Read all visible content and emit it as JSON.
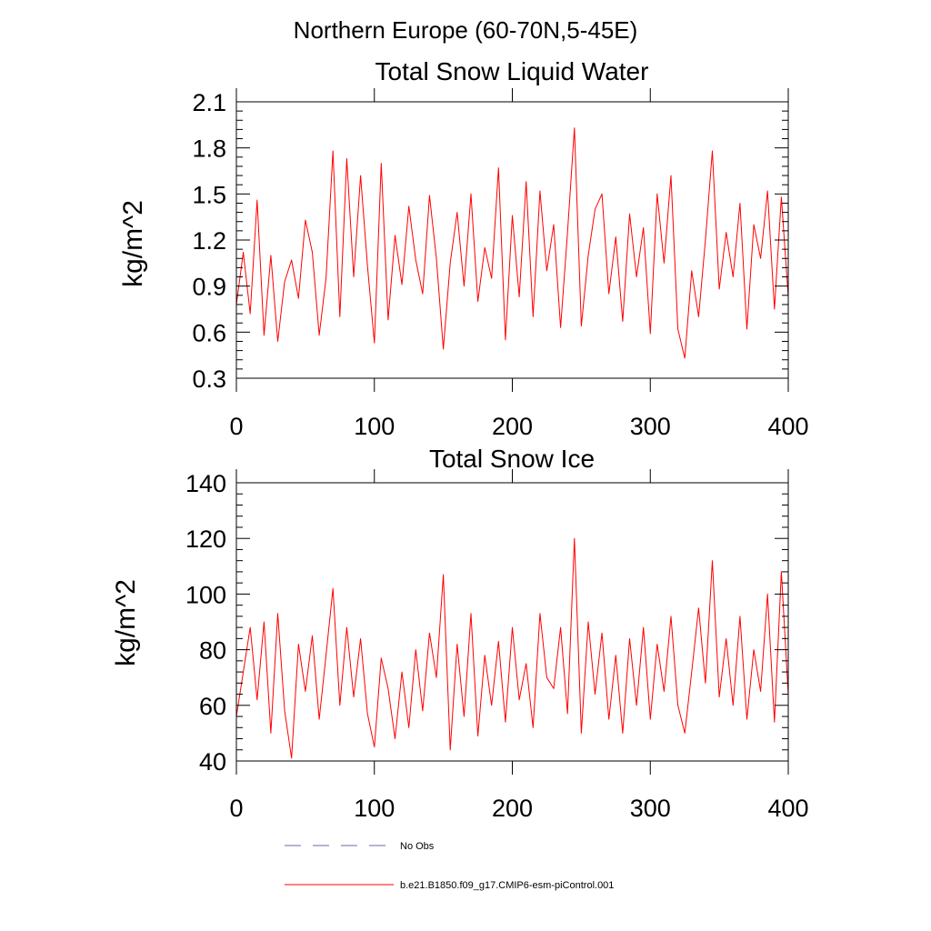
{
  "figure": {
    "suptitle": "Northern Europe (60-70N,5-45E)"
  },
  "chart_data": [
    {
      "type": "line",
      "title": "Total Snow Liquid Water",
      "xlabel": "",
      "ylabel": "kg/m^2",
      "xlim": [
        0,
        400
      ],
      "ylim": [
        0.3,
        2.1
      ],
      "xticks": [
        0,
        100,
        200,
        300,
        400
      ],
      "xtick_labels": [
        "0",
        "100",
        "200",
        "300",
        "400"
      ],
      "yticks": [
        0.3,
        0.6,
        0.9,
        1.2,
        1.5,
        1.8,
        2.1
      ],
      "ytick_labels": [
        "0.3",
        "0.6",
        "0.9",
        "1.2",
        "1.5",
        "1.8",
        "2.1"
      ],
      "grid": false,
      "series": [
        {
          "name": "b.e21.B1850.f09_g17.CMIP6-esm-piControl.001",
          "color": "#ff0000",
          "x": [
            0,
            5,
            10,
            15,
            20,
            25,
            30,
            35,
            40,
            45,
            50,
            55,
            60,
            65,
            70,
            75,
            80,
            85,
            90,
            95,
            100,
            105,
            110,
            115,
            120,
            125,
            130,
            135,
            140,
            145,
            150,
            155,
            160,
            165,
            170,
            175,
            180,
            185,
            190,
            195,
            200,
            205,
            210,
            215,
            220,
            225,
            230,
            235,
            240,
            245,
            250,
            255,
            260,
            265,
            270,
            275,
            280,
            285,
            290,
            295,
            300,
            305,
            310,
            315,
            320,
            325,
            330,
            335,
            340,
            345,
            350,
            355,
            360,
            365,
            370,
            375,
            380,
            385,
            390,
            395,
            400
          ],
          "values": [
            0.78,
            1.12,
            0.72,
            1.46,
            0.58,
            1.1,
            0.54,
            0.93,
            1.07,
            0.82,
            1.33,
            1.12,
            0.58,
            0.95,
            1.78,
            0.7,
            1.73,
            0.96,
            1.62,
            1.03,
            0.53,
            1.7,
            0.68,
            1.23,
            0.91,
            1.42,
            1.07,
            0.85,
            1.49,
            1.08,
            0.49,
            1.05,
            1.38,
            0.9,
            1.5,
            0.8,
            1.15,
            0.95,
            1.67,
            0.55,
            1.36,
            0.83,
            1.58,
            0.7,
            1.52,
            1.0,
            1.3,
            0.63,
            1.25,
            1.93,
            0.64,
            1.1,
            1.4,
            1.5,
            0.85,
            1.22,
            0.67,
            1.37,
            0.96,
            1.28,
            0.59,
            1.5,
            1.05,
            1.62,
            0.62,
            0.43,
            1.0,
            0.7,
            1.2,
            1.78,
            0.88,
            1.25,
            0.96,
            1.44,
            0.62,
            1.3,
            1.08,
            1.52,
            0.75,
            1.48,
            0.83
          ]
        }
      ]
    },
    {
      "type": "line",
      "title": "Total Snow Ice",
      "xlabel": "",
      "ylabel": "kg/m^2",
      "xlim": [
        0,
        400
      ],
      "ylim": [
        40,
        140
      ],
      "xticks": [
        0,
        100,
        200,
        300,
        400
      ],
      "xtick_labels": [
        "0",
        "100",
        "200",
        "300",
        "400"
      ],
      "yticks": [
        40,
        60,
        80,
        100,
        120,
        140
      ],
      "ytick_labels": [
        "40",
        "60",
        "80",
        "100",
        "120",
        "140"
      ],
      "grid": false,
      "series": [
        {
          "name": "b.e21.B1850.f09_g17.CMIP6-esm-piControl.001",
          "color": "#ff0000",
          "x": [
            0,
            5,
            10,
            15,
            20,
            25,
            30,
            35,
            40,
            45,
            50,
            55,
            60,
            65,
            70,
            75,
            80,
            85,
            90,
            95,
            100,
            105,
            110,
            115,
            120,
            125,
            130,
            135,
            140,
            145,
            150,
            155,
            160,
            165,
            170,
            175,
            180,
            185,
            190,
            195,
            200,
            205,
            210,
            215,
            220,
            225,
            230,
            235,
            240,
            245,
            250,
            255,
            260,
            265,
            270,
            275,
            280,
            285,
            290,
            295,
            300,
            305,
            310,
            315,
            320,
            325,
            330,
            335,
            340,
            345,
            350,
            355,
            360,
            365,
            370,
            375,
            380,
            385,
            390,
            395,
            400
          ],
          "values": [
            56,
            72,
            88,
            62,
            90,
            50,
            93,
            58,
            41,
            82,
            65,
            85,
            55,
            78,
            102,
            60,
            88,
            63,
            84,
            57,
            45,
            77,
            66,
            48,
            72,
            52,
            80,
            58,
            86,
            70,
            107,
            44,
            82,
            56,
            93,
            49,
            78,
            60,
            83,
            54,
            88,
            62,
            75,
            52,
            93,
            70,
            66,
            88,
            57,
            120,
            50,
            90,
            64,
            86,
            55,
            78,
            50,
            84,
            60,
            88,
            55,
            82,
            65,
            92,
            60,
            50,
            72,
            95,
            68,
            112,
            63,
            84,
            60,
            92,
            55,
            80,
            65,
            100,
            54,
            108,
            64
          ]
        }
      ]
    }
  ],
  "legend": {
    "placement": "bottom-left",
    "entries": [
      {
        "label": "No Obs",
        "color": "#6a6aa8",
        "style": "dashed"
      },
      {
        "label": "b.e21.B1850.f09_g17.CMIP6-esm-piControl.001",
        "color": "#ff0000",
        "style": "solid"
      }
    ]
  }
}
